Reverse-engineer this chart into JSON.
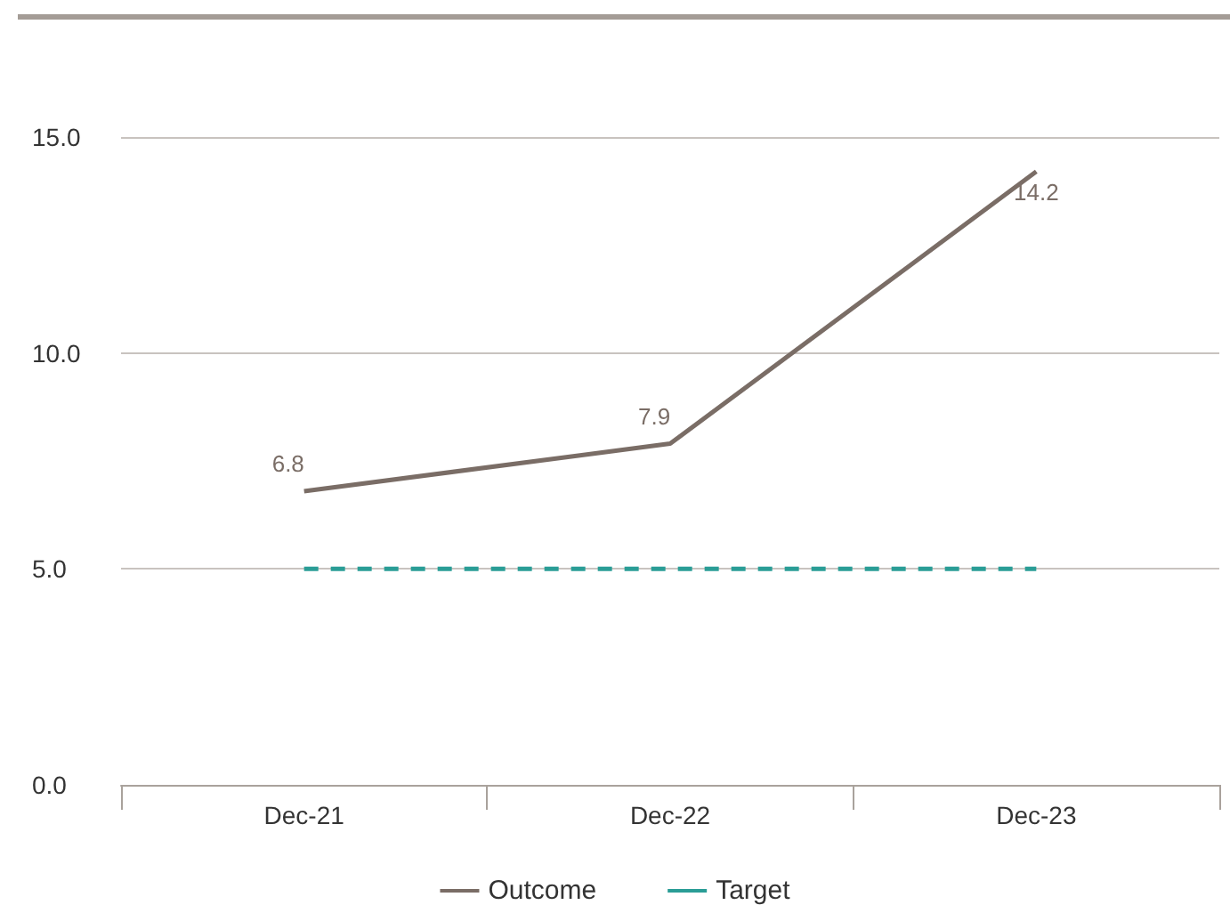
{
  "chart_data": {
    "type": "line",
    "categories": [
      "Dec-21",
      "Dec-22",
      "Dec-23"
    ],
    "series": [
      {
        "name": "Outcome",
        "color": "#7a6d66",
        "values": [
          6.8,
          7.9,
          14.2
        ],
        "value_labels": [
          "6.8",
          "7.9",
          "14.2"
        ],
        "line_style": "solid"
      },
      {
        "name": "Target",
        "color": "#2a9d96",
        "values": [
          5.0,
          5.0,
          5.0
        ],
        "line_style": "dashed"
      }
    ],
    "ylim": [
      0,
      15
    ],
    "yticks": [
      {
        "value": 0,
        "label": "0.0"
      },
      {
        "value": 5,
        "label": "5.0"
      },
      {
        "value": 10,
        "label": "10.0"
      },
      {
        "value": 15,
        "label": "15.0"
      }
    ],
    "grid": "y",
    "legend": "bottom",
    "marker": "none"
  }
}
